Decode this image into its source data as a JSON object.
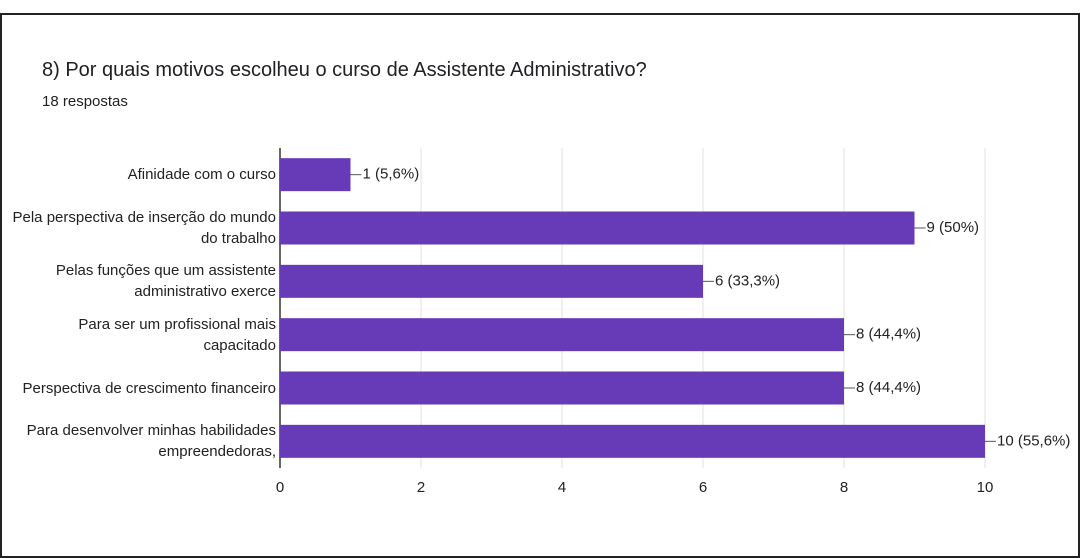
{
  "chart_data": {
    "type": "bar",
    "orientation": "horizontal",
    "title": "8) Por quais motivos escolheu o curso de Assistente Administrativo?",
    "subtitle": "18 respostas",
    "categories": [
      "Afinidade com o curso",
      "Pela perspectiva de inserção do mundo do trabalho",
      "Pelas funções que um assistente administrativo exerce",
      "Para ser um profissional mais capacitado",
      "Perspectiva de crescimento financeiro",
      "Para desenvolver minhas habilidades empreendedoras,"
    ],
    "values": [
      1,
      9,
      6,
      8,
      8,
      10
    ],
    "value_labels": [
      "1 (5,6%)",
      "9 (50%)",
      "6 (33,3%)",
      "8 (44,4%)",
      "8 (44,4%)",
      "10 (55,6%)"
    ],
    "color": "#673ab7",
    "xlim": [
      0,
      10
    ],
    "xticks": [
      0,
      2,
      4,
      6,
      8,
      10
    ],
    "grid": true
  }
}
